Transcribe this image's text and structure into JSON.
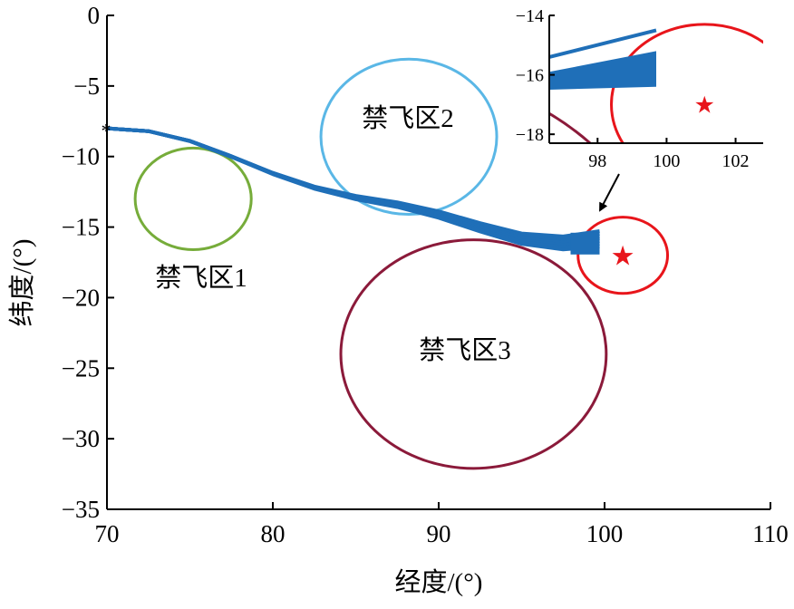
{
  "chart_data": {
    "type": "line",
    "xlabel": "经度/(°)",
    "ylabel": "纬度/(°)",
    "xlim": [
      70,
      110
    ],
    "ylim": [
      -35,
      0
    ],
    "x_ticks": [
      "70",
      "80",
      "90",
      "100",
      "110"
    ],
    "y_ticks": [
      "0",
      "−5",
      "−10",
      "−15",
      "−20",
      "−25",
      "−30",
      "−35"
    ],
    "grid": false,
    "colors": {
      "trajectory": "#1f6fb8",
      "zone1": "#76ac3a",
      "zone2": "#5ab7e6",
      "zone3": "#8b1a3a",
      "target": "#e8151b",
      "axis": "#000000"
    },
    "start_point": {
      "x": 70.0,
      "y": -8.0,
      "marker": "*"
    },
    "trajectory": [
      [
        70.0,
        -8.0
      ],
      [
        72.5,
        -8.2
      ],
      [
        75.0,
        -8.9
      ],
      [
        77.5,
        -10.0
      ],
      [
        80.0,
        -11.2
      ],
      [
        82.5,
        -12.2
      ],
      [
        85.0,
        -12.9
      ],
      [
        87.5,
        -13.4
      ],
      [
        90.0,
        -14.1
      ],
      [
        92.5,
        -15.0
      ],
      [
        95.0,
        -15.8
      ],
      [
        97.5,
        -16.1
      ],
      [
        99.7,
        -15.8
      ]
    ],
    "no_fly_zones": [
      {
        "label": "禁飞区1",
        "cx": 75.2,
        "cy": -13.0,
        "rx": 3.5,
        "ry": 3.6
      },
      {
        "label": "禁飞区2",
        "cx": 88.2,
        "cy": -8.6,
        "rx": 5.3,
        "ry": 5.5
      },
      {
        "label": "禁飞区3",
        "cx": 92.1,
        "cy": -24.0,
        "rx": 8.0,
        "ry": 8.1
      }
    ],
    "target": {
      "x": 101.1,
      "y": -17.0,
      "radius": 2.7,
      "marker": "★"
    },
    "inset": {
      "xlim": [
        96.6,
        102.8
      ],
      "ylim": [
        -18.3,
        -14.0
      ],
      "x_ticks": [
        "98",
        "100",
        "102"
      ],
      "y_ticks": [
        "−14",
        "−16",
        "−18"
      ]
    }
  }
}
